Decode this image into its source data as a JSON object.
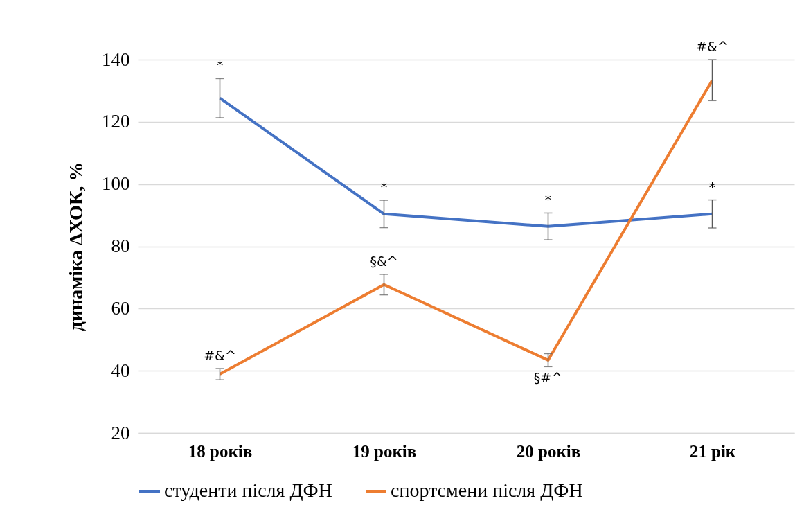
{
  "chart_data": {
    "type": "line",
    "ylabel": "динаміка ΔХОК, %",
    "categories": [
      "18 років",
      "19 років",
      "20 років",
      "21 рік"
    ],
    "series": [
      {
        "name": "студенти після ДФН",
        "color": "#4472c4",
        "values": [
          127.6,
          90.4,
          86.4,
          90.4
        ],
        "errors": [
          6.3,
          4.4,
          4.3,
          4.5
        ]
      },
      {
        "name": "спортсмени після ДФН",
        "color": "#ed7d31",
        "values": [
          38.9,
          67.7,
          43.4,
          133.4
        ],
        "errors": [
          1.8,
          3.3,
          2.1,
          6.6
        ]
      }
    ],
    "ylim": [
      20,
      140
    ],
    "yticks": [
      20,
      40,
      60,
      80,
      100,
      120,
      140
    ],
    "grid": "y",
    "legend": "bottom",
    "marker": "none",
    "line_style": "solid",
    "annotations": [
      {
        "text": "*",
        "x": "18 років",
        "y": 133.9
      },
      {
        "text": "*",
        "x": "19 років",
        "y": 94.8
      },
      {
        "text": "*",
        "x": "20 років",
        "y": 90.7
      },
      {
        "text": "*",
        "x": "21 рік",
        "y": 94.9
      },
      {
        "text": "#&^",
        "x": "18 років",
        "y": 40.7
      },
      {
        "text": "§&^",
        "x": "19 років",
        "y": 71.0
      },
      {
        "text": "§#^",
        "x": "20 років",
        "y": 41.3
      },
      {
        "text": "#&^",
        "x": "21 рік",
        "y": 140.0
      }
    ]
  }
}
